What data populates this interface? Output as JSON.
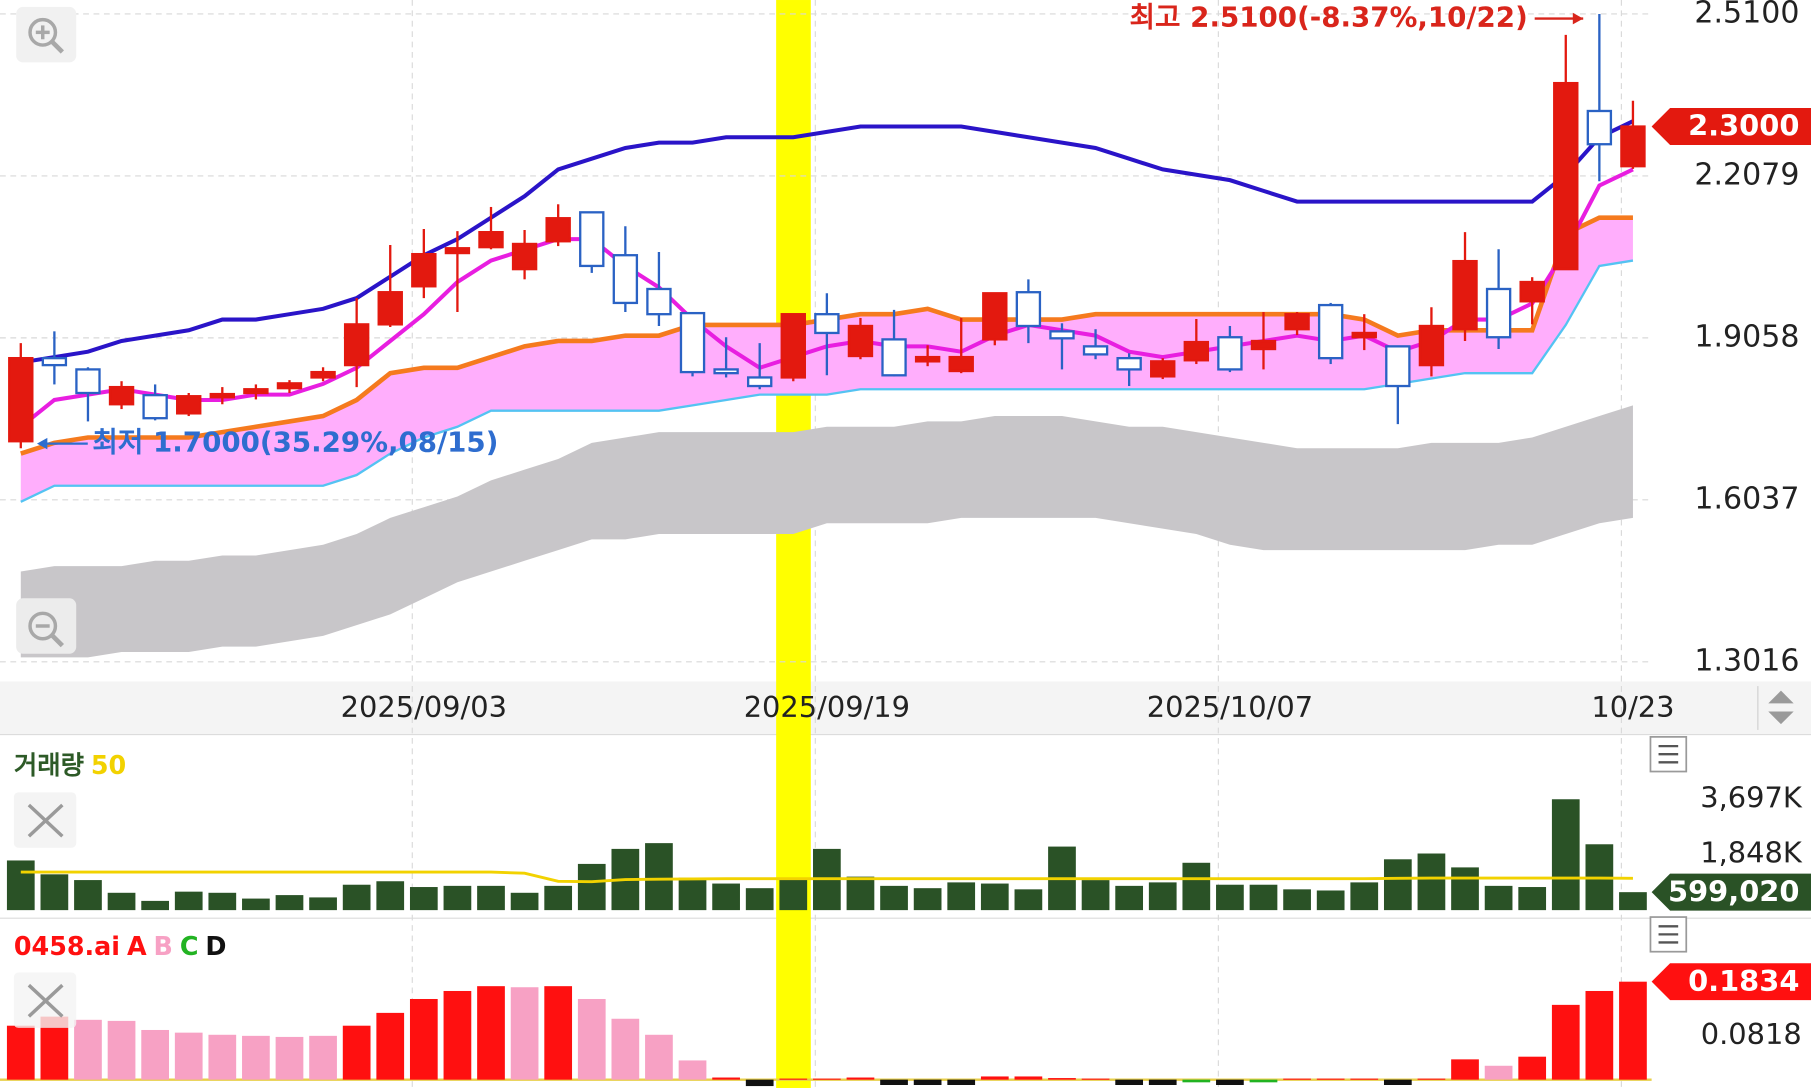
{
  "chart_data": [
    {
      "type": "candlestick",
      "categories": [
        null,
        null,
        null,
        null,
        null,
        null,
        null,
        null,
        null,
        null,
        null,
        null,
        "2025/09/03",
        null,
        null,
        null,
        null,
        null,
        null,
        null,
        null,
        null,
        null,
        null,
        "2025/09/19",
        null,
        null,
        null,
        null,
        null,
        null,
        null,
        null,
        null,
        null,
        null,
        "2025/10/07",
        null,
        null,
        null,
        null,
        null,
        null,
        null,
        null,
        null,
        null,
        null,
        "10/23"
      ],
      "open": [
        1.713,
        1.868,
        1.847,
        1.782,
        1.799,
        1.765,
        1.795,
        1.803,
        1.812,
        1.832,
        1.855,
        1.931,
        2.002,
        2.064,
        2.075,
        2.034,
        2.086,
        2.14,
        2.06,
        1.997,
        1.952,
        1.847,
        1.832,
        1.832,
        1.95,
        1.872,
        1.903,
        1.862,
        1.844,
        1.903,
        1.991,
        1.918,
        1.89,
        1.868,
        1.834,
        1.864,
        1.907,
        1.885,
        1.922,
        1.967,
        1.907,
        1.89,
        1.855,
        1.922,
        1.997,
        1.974,
        2.034,
        2.329,
        2.226
      ],
      "high": [
        1.896,
        1.918,
        1.851,
        1.825,
        1.819,
        1.803,
        1.814,
        1.819,
        1.827,
        1.851,
        1.98,
        2.079,
        2.109,
        2.105,
        2.15,
        2.107,
        2.155,
        2.14,
        2.114,
        2.066,
        1.952,
        1.907,
        1.896,
        1.95,
        1.989,
        1.943,
        1.958,
        1.892,
        1.943,
        1.989,
        2.015,
        1.933,
        1.922,
        1.877,
        1.868,
        1.941,
        1.928,
        1.954,
        1.954,
        1.971,
        1.95,
        1.89,
        1.963,
        2.103,
        2.071,
        2.019,
        2.471,
        2.51,
        2.348
      ],
      "low": [
        1.7,
        1.819,
        1.75,
        1.773,
        1.752,
        1.76,
        1.782,
        1.791,
        1.803,
        1.825,
        1.814,
        1.926,
        1.98,
        1.954,
        2.071,
        2.015,
        2.077,
        2.027,
        1.954,
        1.928,
        1.834,
        1.832,
        1.81,
        1.825,
        1.836,
        1.866,
        1.834,
        1.853,
        1.84,
        1.892,
        1.896,
        1.847,
        1.866,
        1.816,
        1.829,
        1.857,
        1.842,
        1.847,
        1.911,
        1.857,
        1.883,
        1.745,
        1.834,
        1.9,
        1.885,
        1.931,
        2.034,
        2.198,
        2.221
      ],
      "close": [
        1.868,
        1.855,
        1.803,
        1.814,
        1.756,
        1.797,
        1.801,
        1.81,
        1.821,
        1.842,
        1.931,
        1.991,
        2.062,
        2.073,
        2.103,
        2.081,
        2.129,
        2.04,
        1.971,
        1.95,
        1.842,
        1.84,
        1.816,
        1.95,
        1.915,
        1.928,
        1.836,
        1.87,
        1.87,
        1.989,
        1.928,
        1.905,
        1.875,
        1.847,
        1.862,
        1.898,
        1.847,
        1.9,
        1.95,
        1.868,
        1.915,
        1.816,
        1.928,
        2.049,
        1.907,
        2.01,
        2.381,
        2.267,
        2.3
      ],
      "up_color": "#e3190f",
      "down_color": "#2a62c4",
      "lines": [
        {
          "color": "#2a14c8",
          "values": [
            1.86,
            1.87,
            1.88,
            1.9,
            1.91,
            1.92,
            1.94,
            1.94,
            1.95,
            1.96,
            1.98,
            2.02,
            2.06,
            2.09,
            2.13,
            2.17,
            2.22,
            2.24,
            2.26,
            2.27,
            2.27,
            2.28,
            2.28,
            2.28,
            2.29,
            2.3,
            2.3,
            2.3,
            2.3,
            2.29,
            2.28,
            2.27,
            2.26,
            2.24,
            2.22,
            2.21,
            2.2,
            2.18,
            2.16,
            2.16,
            2.16,
            2.16,
            2.16,
            2.16,
            2.16,
            2.16,
            2.21,
            2.28,
            2.31
          ]
        },
        {
          "color": "#e81ee0",
          "values": [
            1.74,
            1.79,
            1.8,
            1.81,
            1.8,
            1.79,
            1.79,
            1.8,
            1.8,
            1.82,
            1.85,
            1.9,
            1.95,
            2.01,
            2.05,
            2.07,
            2.09,
            2.09,
            2.04,
            2.0,
            1.94,
            1.89,
            1.85,
            1.87,
            1.89,
            1.9,
            1.89,
            1.89,
            1.88,
            1.91,
            1.93,
            1.92,
            1.91,
            1.88,
            1.87,
            1.88,
            1.89,
            1.9,
            1.91,
            1.9,
            1.91,
            1.88,
            1.9,
            1.94,
            1.94,
            1.97,
            2.07,
            2.19,
            2.22
          ]
        }
      ],
      "bands": [
        {
          "fill": "#c8c6c9",
          "upper": [
            1.47,
            1.48,
            1.48,
            1.48,
            1.49,
            1.49,
            1.5,
            1.5,
            1.51,
            1.52,
            1.54,
            1.57,
            1.59,
            1.61,
            1.64,
            1.66,
            1.68,
            1.71,
            1.72,
            1.73,
            1.73,
            1.73,
            1.73,
            1.73,
            1.74,
            1.74,
            1.74,
            1.75,
            1.75,
            1.76,
            1.76,
            1.76,
            1.75,
            1.74,
            1.74,
            1.73,
            1.72,
            1.71,
            1.7,
            1.7,
            1.7,
            1.7,
            1.71,
            1.71,
            1.71,
            1.72,
            1.74,
            1.76,
            1.78
          ],
          "lower": [
            1.31,
            1.31,
            1.31,
            1.32,
            1.32,
            1.32,
            1.33,
            1.33,
            1.34,
            1.35,
            1.37,
            1.39,
            1.42,
            1.45,
            1.47,
            1.49,
            1.51,
            1.53,
            1.53,
            1.54,
            1.54,
            1.54,
            1.54,
            1.54,
            1.56,
            1.56,
            1.56,
            1.56,
            1.57,
            1.57,
            1.57,
            1.57,
            1.57,
            1.56,
            1.55,
            1.54,
            1.52,
            1.51,
            1.51,
            1.51,
            1.51,
            1.51,
            1.51,
            1.51,
            1.52,
            1.52,
            1.54,
            1.56,
            1.57
          ]
        },
        {
          "fill": "#ffaefc",
          "upper_color": "#f57a1e",
          "lower_color": "#54c3f2",
          "upper": [
            1.69,
            1.71,
            1.72,
            1.72,
            1.72,
            1.72,
            1.73,
            1.74,
            1.75,
            1.76,
            1.79,
            1.84,
            1.85,
            1.85,
            1.87,
            1.89,
            1.9,
            1.9,
            1.91,
            1.91,
            1.93,
            1.93,
            1.93,
            1.93,
            1.94,
            1.95,
            1.95,
            1.96,
            1.94,
            1.94,
            1.94,
            1.94,
            1.95,
            1.95,
            1.95,
            1.95,
            1.95,
            1.95,
            1.95,
            1.95,
            1.94,
            1.91,
            1.92,
            1.92,
            1.92,
            1.92,
            2.1,
            2.13,
            2.13
          ],
          "lower": [
            1.6,
            1.63,
            1.63,
            1.63,
            1.63,
            1.63,
            1.63,
            1.63,
            1.63,
            1.63,
            1.65,
            1.69,
            1.72,
            1.74,
            1.77,
            1.77,
            1.77,
            1.77,
            1.77,
            1.77,
            1.78,
            1.79,
            1.8,
            1.8,
            1.8,
            1.81,
            1.81,
            1.81,
            1.81,
            1.81,
            1.81,
            1.81,
            1.81,
            1.81,
            1.81,
            1.81,
            1.81,
            1.81,
            1.81,
            1.81,
            1.81,
            1.82,
            1.83,
            1.84,
            1.84,
            1.84,
            1.93,
            2.04,
            2.05
          ]
        }
      ],
      "ylim": [
        1.265,
        2.536
      ],
      "yticks": [
        {
          "value": 2.51,
          "label": "2.5100"
        },
        2.2079,
        1.9058,
        1.6037,
        1.3016
      ],
      "grid": true,
      "last_price": {
        "value": 2.3,
        "label": "2.3000"
      },
      "last_color": "#e3190f",
      "high_label": "최고 2.5100(-8.37%,10/22)",
      "high_index": 47,
      "high_color": "#d9251b",
      "low_label": "최저 1.7000(35.29%,08/15)",
      "low_index": 0,
      "low_color": "#2e6dcf"
    },
    {
      "type": "bar",
      "title": "거래량",
      "title_color": "#2d5a27",
      "ma_label": "50",
      "ma_color": "#f2d200",
      "color": "#2a5226",
      "values": [
        1656000,
        1194000,
        1002000,
        578000,
        308000,
        616000,
        578000,
        385000,
        501000,
        424000,
        847000,
        963000,
        770000,
        809000,
        809000,
        578000,
        809000,
        1541000,
        2042000,
        2234000,
        1079000,
        886000,
        732000,
        1079000,
        2042000,
        1117000,
        809000,
        732000,
        925000,
        886000,
        693000,
        2119000,
        1002000,
        809000,
        925000,
        1579000,
        847000,
        847000,
        693000,
        655000,
        925000,
        1695000,
        1888000,
        1425000,
        809000,
        770000,
        3697000,
        2196000,
        599020
      ],
      "ma": [
        1270000,
        1270000,
        1270000,
        1270000,
        1270000,
        1270000,
        1270000,
        1270000,
        1270000,
        1270000,
        1270000,
        1270000,
        1270000,
        1270000,
        1270000,
        1230000,
        960000,
        950000,
        1020000,
        1030000,
        1040000,
        1050000,
        1050000,
        1050000,
        1050000,
        1050000,
        1050000,
        1050000,
        1050000,
        1050000,
        1050000,
        1050000,
        1050000,
        1050000,
        1050000,
        1050000,
        1050000,
        1050000,
        1050000,
        1050000,
        1050000,
        1060000,
        1070000,
        1070000,
        1070000,
        1070000,
        1070000,
        1070000,
        1060000
      ],
      "ylim": [
        0,
        5700000
      ],
      "yticks": [
        {
          "value": 3697000,
          "label": "3,697K"
        },
        {
          "value": 1848000,
          "label": "1,848K"
        }
      ],
      "last_price": {
        "value": 599020,
        "label": "599,020"
      },
      "last_color": "#2a5226"
    },
    {
      "type": "bar",
      "title": "0458.ai",
      "title_color": "#ff1010",
      "legend": [
        {
          "name": "A",
          "color": "#ff1010"
        },
        {
          "name": "B",
          "color": "#f7a1c4"
        },
        {
          "name": "C",
          "color": "#22b322"
        },
        {
          "name": "D",
          "color": "#111111"
        }
      ],
      "values": [
        0.101,
        0.118,
        0.112,
        0.11,
        0.093,
        0.088,
        0.084,
        0.082,
        0.08,
        0.082,
        0.101,
        0.125,
        0.151,
        0.166,
        0.175,
        0.173,
        0.175,
        0.151,
        0.114,
        0.084,
        0.036,
        0.004,
        -0.012,
        0.002,
        0.002,
        0.004,
        -0.01,
        -0.01,
        -0.01,
        0.006,
        0.006,
        0.003,
        0.002,
        -0.01,
        -0.01,
        -0.005,
        -0.01,
        -0.005,
        0.002,
        0.002,
        0.002,
        -0.01,
        0.002,
        0.038,
        0.026,
        0.043,
        0.14,
        0.166,
        0.1834
      ],
      "colors": [
        "#ff1010",
        "#ff1010",
        "#f7a1c4",
        "#f7a1c4",
        "#f7a1c4",
        "#f7a1c4",
        "#f7a1c4",
        "#f7a1c4",
        "#f7a1c4",
        "#f7a1c4",
        "#ff1010",
        "#ff1010",
        "#ff1010",
        "#ff1010",
        "#ff1010",
        "#f7a1c4",
        "#ff1010",
        "#f7a1c4",
        "#f7a1c4",
        "#f7a1c4",
        "#f7a1c4",
        "#ff1010",
        "#111111",
        "#ff1010",
        "#ff1010",
        "#ff1010",
        "#111111",
        "#111111",
        "#111111",
        "#ff1010",
        "#ff1010",
        "#ff1010",
        "#ff1010",
        "#111111",
        "#111111",
        "#22b322",
        "#111111",
        "#22b322",
        "#ff1010",
        "#ff1010",
        "#ff1010",
        "#111111",
        "#ff1010",
        "#ff1010",
        "#f7a1c4",
        "#ff1010",
        "#ff1010",
        "#ff1010",
        "#ff1010"
      ],
      "ylim": [
        -0.0156,
        0.2914
      ],
      "yticks": [
        0.0818
      ],
      "last_price": 0.1834,
      "last_color": "#ff1010"
    }
  ]
}
